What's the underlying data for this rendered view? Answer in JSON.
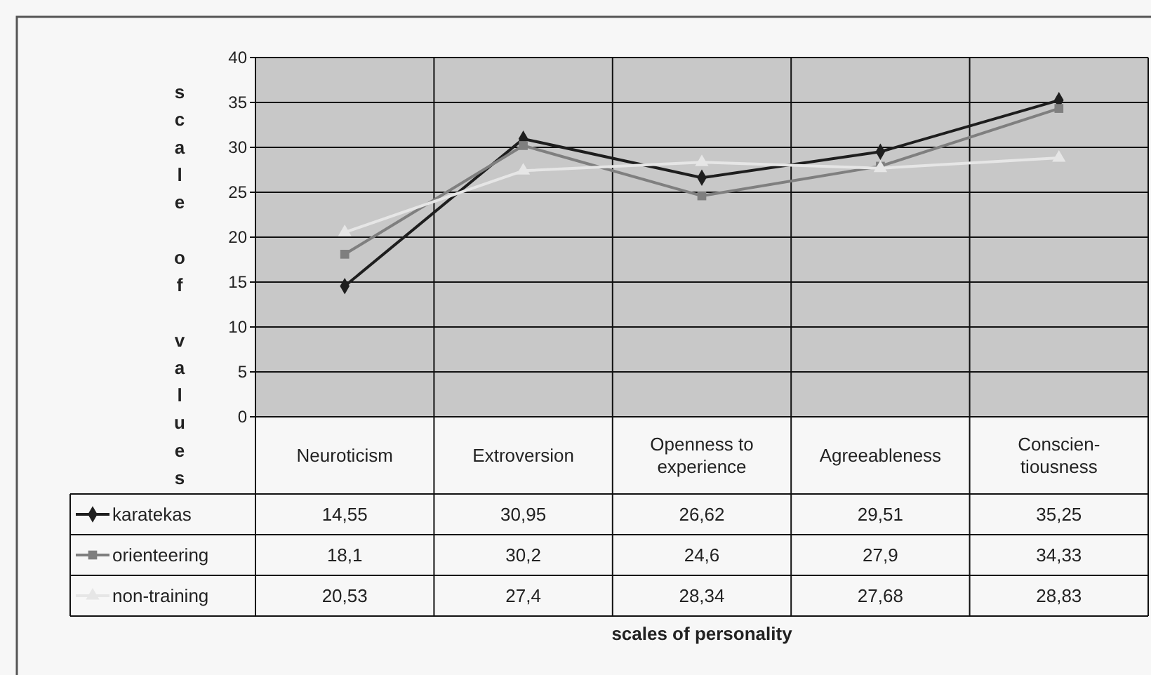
{
  "chart_data": {
    "type": "line",
    "annotations": [
      "scales of personality"
    ],
    "ylabel": "scale of values",
    "categories": [
      "Neuroticism",
      "Extroversion",
      "Openness to experience",
      "Agreeableness",
      "Conscien-tiousness"
    ],
    "series": [
      {
        "name": "karatekas",
        "color": "#1e1e1e",
        "marker": "diamond",
        "values": [
          14.55,
          30.95,
          26.62,
          29.51,
          35.25
        ],
        "value_labels": [
          "14,55",
          "30,95",
          "26,62",
          "29,51",
          "35,25"
        ]
      },
      {
        "name": "orienteering",
        "color": "#7f7f7f",
        "marker": "square",
        "values": [
          18.1,
          30.2,
          24.6,
          27.9,
          34.33
        ],
        "value_labels": [
          "18,1",
          "30,2",
          "24,6",
          "27,9",
          "34,33"
        ]
      },
      {
        "name": "non-training",
        "color": "#e6e6e6",
        "marker": "triangle",
        "values": [
          20.53,
          27.4,
          28.34,
          27.68,
          28.83
        ],
        "value_labels": [
          "20,53",
          "27,4",
          "28,34",
          "27,68",
          "28,83"
        ]
      }
    ],
    "ylim": [
      0,
      40
    ],
    "yticks": [
      0,
      5,
      10,
      15,
      20,
      25,
      30,
      35,
      40
    ],
    "grid": true,
    "legend": "bottom left",
    "line_style": "solid"
  }
}
